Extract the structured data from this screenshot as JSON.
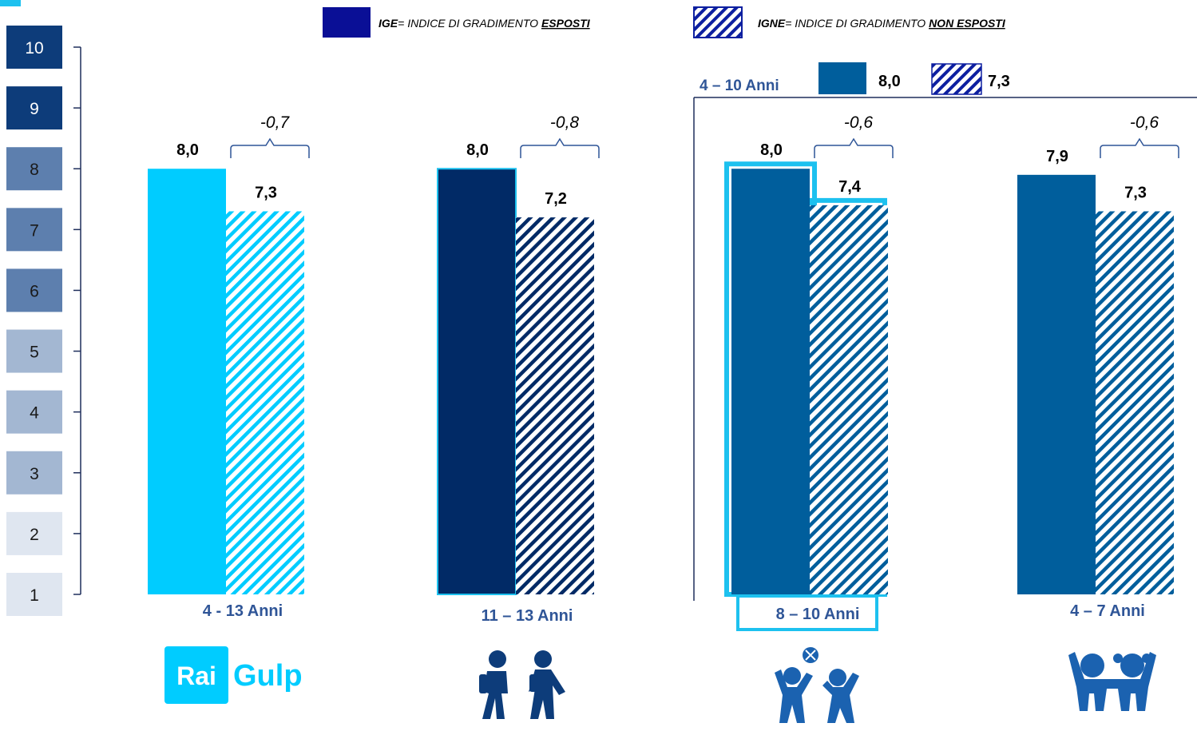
{
  "legend": {
    "exposed_abbr": "IGE",
    "exposed_rest": "= INDICE DI GRADIMENTO ",
    "exposed_key": "ESPOSTI",
    "not_exposed_abbr": "IGNE",
    "not_exposed_rest": "= INDICE DI GRADIMENTO ",
    "not_exposed_key": "NON ESPOSTI"
  },
  "scale_labels": [
    "10",
    "9",
    "8",
    "7",
    "6",
    "5",
    "4",
    "3",
    "2",
    "1"
  ],
  "scale_colors": [
    "#0d3c7a",
    "#0d3c7a",
    "#5d7fae",
    "#5d7fae",
    "#5d7fae",
    "#a3b7d2",
    "#a3b7d2",
    "#a3b7d2",
    "#dfe6f0",
    "#dfe6f0"
  ],
  "subgroup_box": {
    "label": "4 – 10 Anni",
    "exposed_value": "8,0",
    "not_exposed_value": "7,3"
  },
  "icons": {
    "brand_logo_word1": "Rai",
    "brand_logo_word2": "Gulp",
    "teens": "teenagers-icon",
    "kids_playing": "kids-playing-ball-icon",
    "young_kids": "young-kids-icon"
  },
  "colors": {
    "rai_gulp": "#00ccff",
    "teens": "#012a66",
    "kids": "#005e9c",
    "highlight": "#1dc1ef",
    "label_blue": "#2f5597"
  },
  "chart_data": {
    "type": "bar",
    "title": "",
    "xlabel": "",
    "ylabel": "",
    "ylim": [
      1,
      10
    ],
    "grid": false,
    "legend_position": "top",
    "categories": [
      "4 - 13 Anni",
      "11 – 13 Anni",
      "8 – 10 Anni",
      "4 – 7 Anni"
    ],
    "series": [
      {
        "name": "IGE",
        "values": [
          8.0,
          8.0,
          8.0,
          7.9
        ],
        "labels": [
          "8,0",
          "8,0",
          "8,0",
          "7,9"
        ]
      },
      {
        "name": "IGNE",
        "values": [
          7.3,
          7.2,
          7.4,
          7.3
        ],
        "labels": [
          "7,3",
          "7,2",
          "7,4",
          "7,3"
        ]
      }
    ],
    "differences": [
      "-0,7",
      "-0,8",
      "-0,6",
      "-0,6"
    ],
    "highlighted_category": "8 – 10 Anni"
  }
}
